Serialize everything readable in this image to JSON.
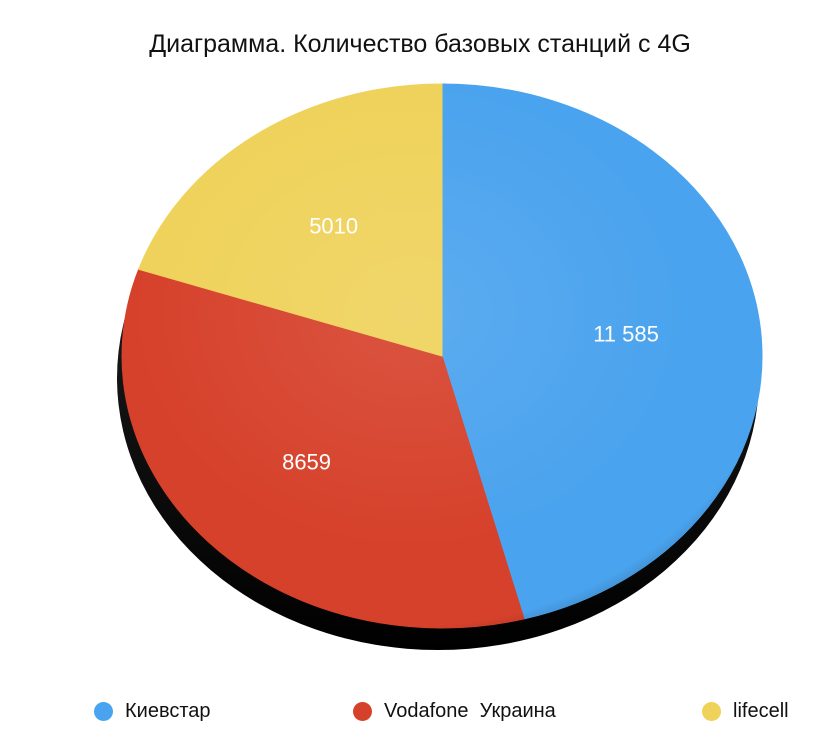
{
  "chart_data": {
    "type": "pie",
    "title": "Диаграмма. Количество базовых станций с 4G",
    "categories": [
      "Киевстар",
      "Vodafone  Украина",
      "lifecell"
    ],
    "values": [
      11585,
      8659,
      5010
    ],
    "value_labels": [
      "11 585",
      "8659",
      "5010"
    ],
    "colors": [
      "#4aa3ee",
      "#d6412b",
      "#efd25a"
    ],
    "legend_position": "bottom",
    "start_angle_deg": -90,
    "direction": "clockwise"
  }
}
